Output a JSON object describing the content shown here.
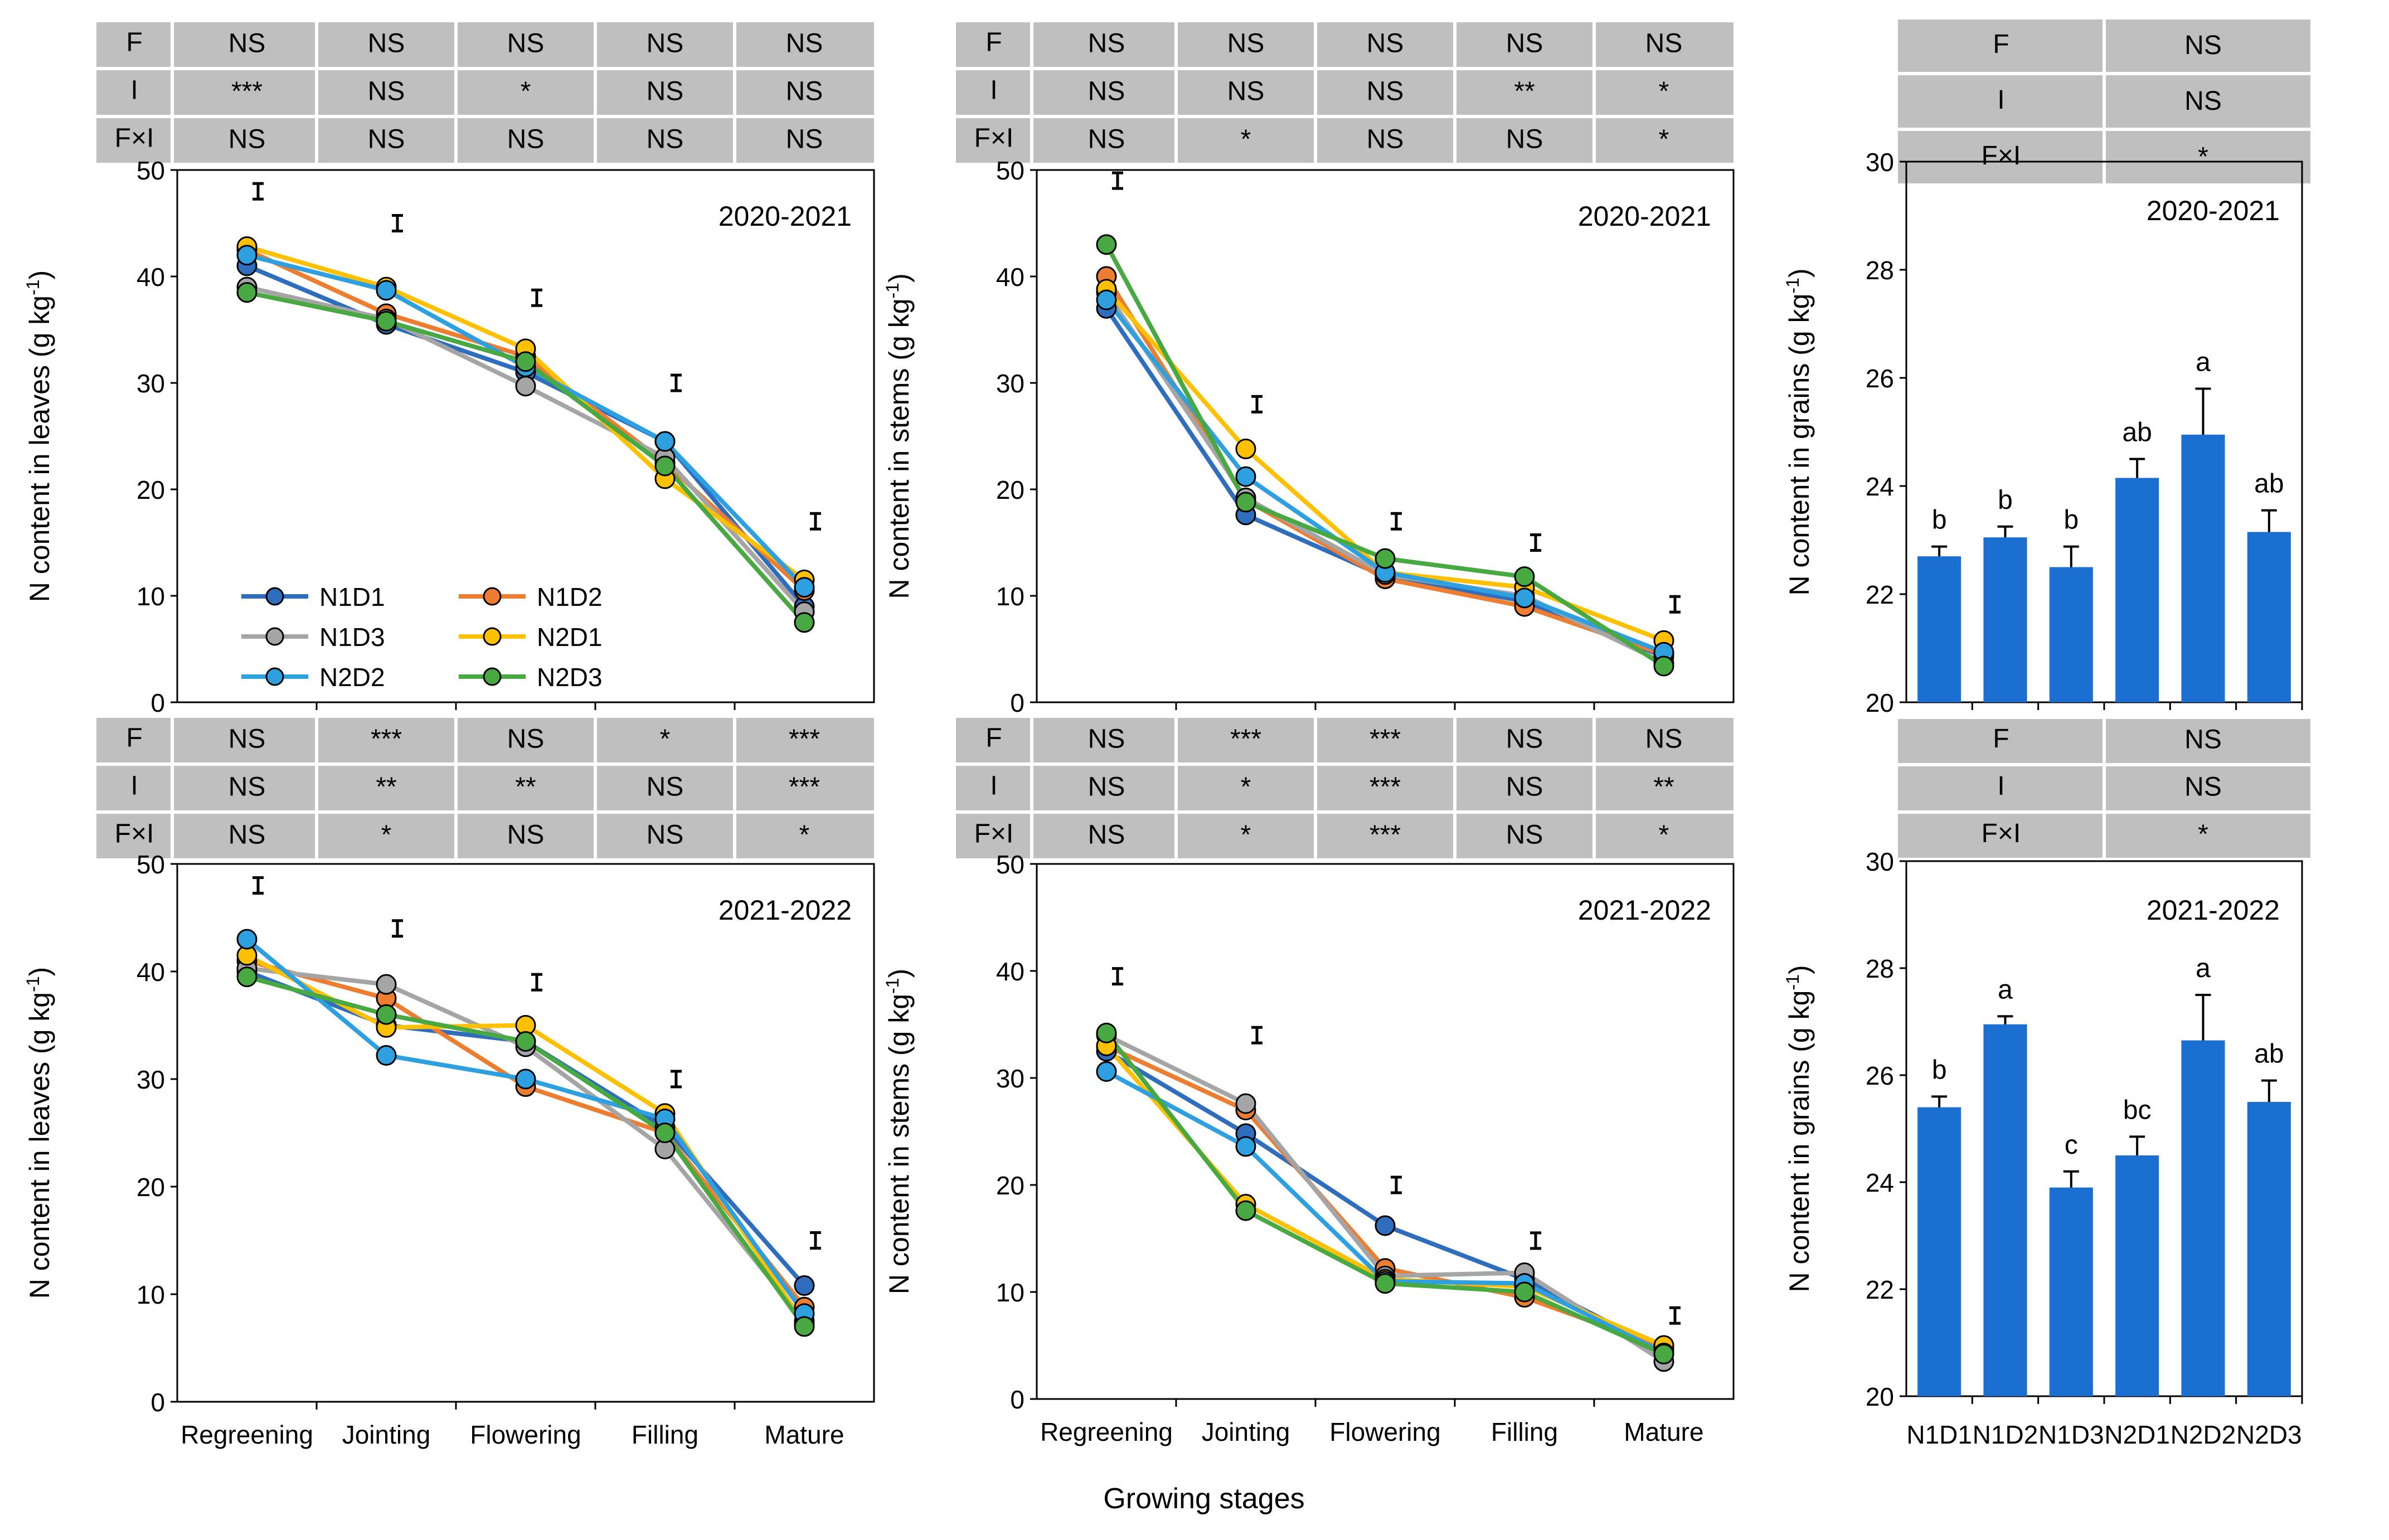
{
  "figure": {
    "xlabel": "Growing stages",
    "stages": [
      "Regreening",
      "Jointing",
      "Flowering",
      "Filling",
      "Mature"
    ],
    "treatments": [
      "N1D1",
      "N1D2",
      "N1D3",
      "N2D1",
      "N2D2",
      "N2D3"
    ],
    "colors": {
      "N1D1": "#2f6dbd",
      "N1D2": "#ec7d31",
      "N1D3": "#a5a5a5",
      "N2D1": "#ffc000",
      "N2D2": "#2ea0e0",
      "N2D3": "#48a942",
      "bar": "#1a6fd1",
      "table": "#bfbfbf"
    },
    "legend": [
      "N1D1",
      "N1D2",
      "N1D3",
      "N2D1",
      "N2D2",
      "N2D3"
    ]
  },
  "chart_data": [
    {
      "id": "leaves-2020",
      "type": "line",
      "title": "2020-2021",
      "ylabel": "N content in leaves (g kg-1)",
      "ylim": [
        0,
        50
      ],
      "yticks": [
        0,
        10,
        20,
        30,
        40,
        50
      ],
      "categories": [
        "Regreening",
        "Jointing",
        "Flowering",
        "Filling",
        "Mature"
      ],
      "series": [
        {
          "name": "N1D1",
          "values": [
            41.0,
            35.5,
            31.0,
            24.5,
            9.0
          ]
        },
        {
          "name": "N1D2",
          "values": [
            42.5,
            36.5,
            32.5,
            22.5,
            10.5
          ]
        },
        {
          "name": "N1D3",
          "values": [
            39.0,
            36.0,
            29.7,
            23.0,
            8.5
          ]
        },
        {
          "name": "N2D1",
          "values": [
            42.8,
            39.0,
            33.2,
            21.0,
            11.5
          ]
        },
        {
          "name": "N2D2",
          "values": [
            42.0,
            38.7,
            31.5,
            24.5,
            10.8
          ]
        },
        {
          "name": "N2D3",
          "values": [
            38.5,
            35.8,
            32.0,
            22.2,
            7.5
          ]
        }
      ],
      "lsd": [
        48.0,
        45.0,
        38.0,
        30.0,
        17.0
      ],
      "anova": {
        "rows": [
          "F",
          "I",
          "F×I"
        ],
        "cells": [
          [
            "NS",
            "NS",
            "NS",
            "NS",
            "NS"
          ],
          [
            "***",
            "NS",
            "*",
            "NS",
            "NS"
          ],
          [
            "NS",
            "NS",
            "NS",
            "NS",
            "NS"
          ]
        ]
      }
    },
    {
      "id": "stems-2020",
      "type": "line",
      "title": "2020-2021",
      "ylabel": "N content in stems (g kg-1)",
      "ylim": [
        0,
        50
      ],
      "yticks": [
        0,
        10,
        20,
        30,
        40,
        50
      ],
      "categories": [
        "Regreening",
        "Jointing",
        "Flowering",
        "Filling",
        "Mature"
      ],
      "series": [
        {
          "name": "N1D1",
          "values": [
            37.0,
            17.6,
            11.8,
            9.5,
            4.3
          ]
        },
        {
          "name": "N1D2",
          "values": [
            40.0,
            19.0,
            11.6,
            9.0,
            4.5
          ]
        },
        {
          "name": "N1D3",
          "values": [
            38.5,
            19.2,
            12.0,
            10.0,
            3.7
          ]
        },
        {
          "name": "N2D1",
          "values": [
            38.8,
            23.8,
            12.2,
            10.8,
            5.8
          ]
        },
        {
          "name": "N2D2",
          "values": [
            37.8,
            21.2,
            12.2,
            9.8,
            4.7
          ]
        },
        {
          "name": "N2D3",
          "values": [
            43.0,
            18.8,
            13.5,
            11.8,
            3.4
          ]
        }
      ],
      "lsd": [
        49.0,
        28.0,
        17.0,
        15.0,
        9.2
      ],
      "anova": {
        "rows": [
          "F",
          "I",
          "F×I"
        ],
        "cells": [
          [
            "NS",
            "NS",
            "NS",
            "NS",
            "NS"
          ],
          [
            "NS",
            "NS",
            "NS",
            "**",
            "*"
          ],
          [
            "NS",
            "*",
            "NS",
            "NS",
            "*"
          ]
        ]
      }
    },
    {
      "id": "grains-2020",
      "type": "bar",
      "title": "2020-2021",
      "ylabel": "N content in grains (g kg-1)",
      "ylim": [
        20,
        30
      ],
      "yticks": [
        20,
        22,
        24,
        26,
        28,
        30
      ],
      "categories": [
        "N1D1",
        "N1D2",
        "N1D3",
        "N2D1",
        "N2D2",
        "N2D3"
      ],
      "values": [
        22.7,
        23.05,
        22.5,
        24.15,
        24.95,
        23.15
      ],
      "errors": [
        0.18,
        0.2,
        0.38,
        0.35,
        0.85,
        0.4
      ],
      "letters": [
        "b",
        "b",
        "b",
        "ab",
        "a",
        "ab"
      ],
      "anova": {
        "rows": [
          "F",
          "I",
          "F×I"
        ],
        "cells": [
          [
            "NS"
          ],
          [
            "NS"
          ],
          [
            "*"
          ]
        ]
      }
    },
    {
      "id": "leaves-2021",
      "type": "line",
      "title": "2021-2022",
      "ylabel": "N content in leaves (g kg-1)",
      "ylim": [
        0,
        50
      ],
      "yticks": [
        0,
        10,
        20,
        30,
        40,
        50
      ],
      "categories": [
        "Regreening",
        "Jointing",
        "Flowering",
        "Filling",
        "Mature"
      ],
      "series": [
        {
          "name": "N1D1",
          "values": [
            40.0,
            35.0,
            33.5,
            25.5,
            10.8
          ]
        },
        {
          "name": "N1D2",
          "values": [
            41.0,
            37.5,
            29.3,
            25.0,
            8.8
          ]
        },
        {
          "name": "N1D3",
          "values": [
            40.3,
            38.8,
            33.0,
            23.5,
            7.5
          ]
        },
        {
          "name": "N2D1",
          "values": [
            41.5,
            34.8,
            35.0,
            26.8,
            7.2
          ]
        },
        {
          "name": "N2D2",
          "values": [
            43.0,
            32.2,
            30.0,
            26.3,
            8.2
          ]
        },
        {
          "name": "N2D3",
          "values": [
            39.5,
            36.0,
            33.5,
            25.0,
            7.0
          ]
        }
      ],
      "lsd": [
        48.0,
        44.0,
        39.0,
        30.0,
        15.0
      ],
      "anova": {
        "rows": [
          "F",
          "I",
          "F×I"
        ],
        "cells": [
          [
            "NS",
            "***",
            "NS",
            "*",
            "***"
          ],
          [
            "NS",
            "**",
            "**",
            "NS",
            "***"
          ],
          [
            "NS",
            "*",
            "NS",
            "NS",
            "*"
          ]
        ]
      }
    },
    {
      "id": "stems-2021",
      "type": "line",
      "title": "2021-2022",
      "ylabel": "N content in stems (g kg-1)",
      "ylim": [
        0,
        50
      ],
      "yticks": [
        0,
        10,
        20,
        30,
        40,
        50
      ],
      "categories": [
        "Regreening",
        "Jointing",
        "Flowering",
        "Filling",
        "Mature"
      ],
      "series": [
        {
          "name": "N1D1",
          "values": [
            32.5,
            24.8,
            16.2,
            11.2,
            4.5
          ]
        },
        {
          "name": "N1D2",
          "values": [
            33.0,
            27.0,
            12.2,
            9.5,
            4.8
          ]
        },
        {
          "name": "N1D3",
          "values": [
            34.0,
            27.6,
            11.5,
            11.8,
            3.5
          ]
        },
        {
          "name": "N2D1",
          "values": [
            33.0,
            18.2,
            11.2,
            10.5,
            5.0
          ]
        },
        {
          "name": "N2D2",
          "values": [
            30.6,
            23.6,
            11.0,
            10.8,
            4.3
          ]
        },
        {
          "name": "N2D3",
          "values": [
            34.2,
            17.6,
            10.8,
            10.0,
            4.2
          ]
        }
      ],
      "lsd": [
        39.5,
        34.0,
        20.0,
        14.8,
        7.8
      ],
      "anova": {
        "rows": [
          "F",
          "I",
          "F×I"
        ],
        "cells": [
          [
            "NS",
            "***",
            "***",
            "NS",
            "NS"
          ],
          [
            "NS",
            "*",
            "***",
            "NS",
            "**"
          ],
          [
            "NS",
            "*",
            "***",
            "NS",
            "*"
          ]
        ]
      }
    },
    {
      "id": "grains-2021",
      "type": "bar",
      "title": "2021-2022",
      "ylabel": "N content in grains (g kg-1)",
      "ylim": [
        20,
        30
      ],
      "yticks": [
        20,
        22,
        24,
        26,
        28,
        30
      ],
      "categories": [
        "N1D1",
        "N1D2",
        "N1D3",
        "N2D1",
        "N2D2",
        "N2D3"
      ],
      "values": [
        25.4,
        26.95,
        23.9,
        24.5,
        26.65,
        25.5
      ],
      "errors": [
        0.2,
        0.15,
        0.3,
        0.35,
        0.85,
        0.4
      ],
      "letters": [
        "b",
        "a",
        "c",
        "bc",
        "a",
        "ab"
      ],
      "anova": {
        "rows": [
          "F",
          "I",
          "F×I"
        ],
        "cells": [
          [
            "NS"
          ],
          [
            "NS"
          ],
          [
            "*"
          ]
        ]
      }
    }
  ]
}
